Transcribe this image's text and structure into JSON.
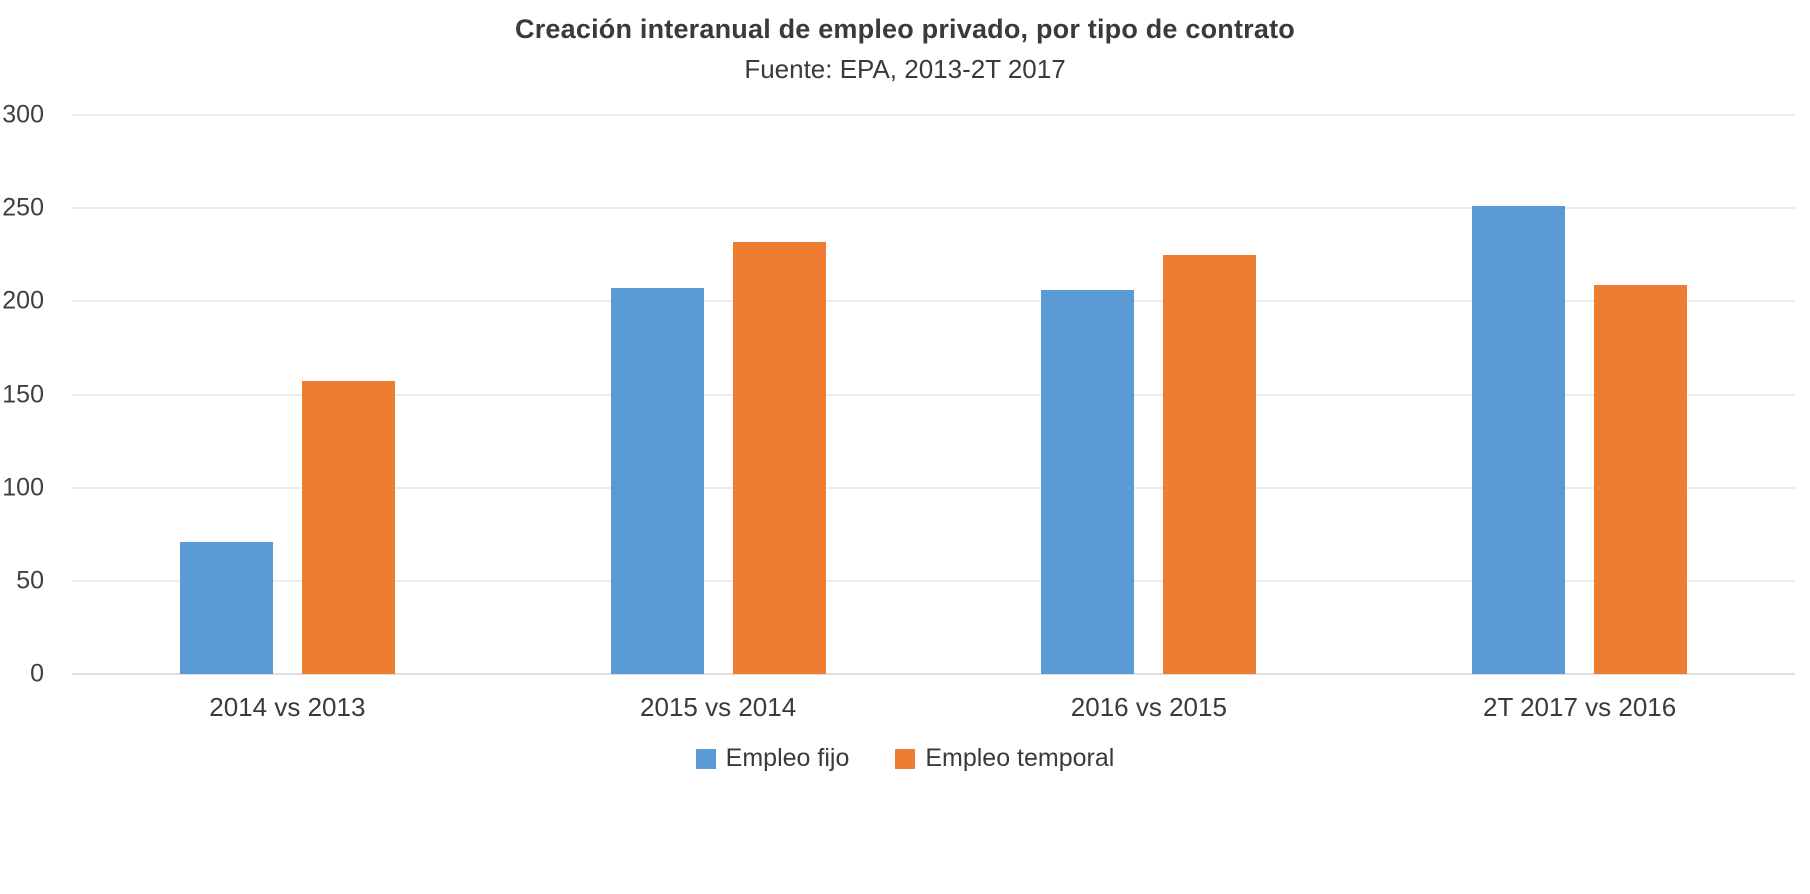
{
  "chart_data": {
    "type": "bar",
    "title": "Creación interanual de empleo privado, por tipo de contrato",
    "subtitle": "Fuente: EPA, 2013-2T 2017",
    "categories": [
      "2014 vs 2013",
      "2015 vs 2014",
      "2016 vs 2015",
      "2T 2017 vs 2016"
    ],
    "series": [
      {
        "name": "Empleo fijo",
        "color": "#5B9BD5",
        "values": [
          71,
          207,
          206,
          251
        ]
      },
      {
        "name": "Empleo temporal",
        "color": "#ED7D31",
        "values": [
          157,
          232,
          225,
          209
        ]
      }
    ],
    "xlabel": "",
    "ylabel": "",
    "ylim": [
      0,
      300
    ],
    "yticks": [
      0,
      50,
      100,
      150,
      200,
      250,
      300
    ],
    "grid": true,
    "legend_position": "bottom",
    "colors": {
      "gridline": "#d9d9d9",
      "axis_line": "#bfbfbf",
      "text": "#3a3a3a",
      "background": "#ffffff"
    }
  }
}
